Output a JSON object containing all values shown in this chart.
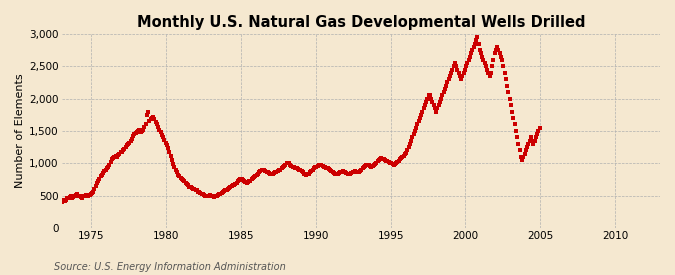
{
  "title": "Monthly U.S. Natural Gas Developmental Wells Drilled",
  "ylabel": "Number of Elements",
  "source_text": "Source: U.S. Energy Information Administration",
  "background_color": "#f5e8d0",
  "plot_bg_color": "#f5e8d0",
  "marker_color": "#cc0000",
  "ylim": [
    0,
    3000
  ],
  "yticks": [
    0,
    500,
    1000,
    1500,
    2000,
    2500,
    3000
  ],
  "ytick_labels": [
    "0",
    "500",
    "1,000",
    "1,500",
    "2,000",
    "2,500",
    "3,000"
  ],
  "xtick_years": [
    1975,
    1980,
    1985,
    1990,
    1995,
    2000,
    2005,
    2010
  ],
  "title_fontsize": 10.5,
  "label_fontsize": 8,
  "tick_fontsize": 7.5,
  "source_fontsize": 7,
  "xlim_start": [
    1973,
    1,
    1
  ],
  "xlim_end": [
    2013,
    1,
    1
  ],
  "start_year": 1973,
  "start_month": 1,
  "values": [
    400,
    430,
    420,
    430,
    460,
    470,
    480,
    490,
    470,
    480,
    500,
    510,
    520,
    500,
    490,
    480,
    470,
    490,
    500,
    510,
    490,
    500,
    510,
    520,
    540,
    560,
    600,
    650,
    700,
    730,
    760,
    800,
    820,
    850,
    880,
    900,
    920,
    950,
    980,
    1020,
    1060,
    1080,
    1100,
    1120,
    1100,
    1130,
    1150,
    1170,
    1180,
    1200,
    1220,
    1250,
    1280,
    1300,
    1320,
    1350,
    1380,
    1420,
    1450,
    1470,
    1490,
    1500,
    1520,
    1480,
    1500,
    1520,
    1560,
    1600,
    1750,
    1800,
    1650,
    1680,
    1700,
    1720,
    1680,
    1640,
    1600,
    1560,
    1520,
    1480,
    1440,
    1400,
    1360,
    1320,
    1280,
    1240,
    1180,
    1120,
    1050,
    990,
    940,
    900,
    860,
    820,
    800,
    780,
    760,
    740,
    720,
    700,
    680,
    660,
    640,
    630,
    620,
    610,
    600,
    590,
    580,
    560,
    550,
    540,
    530,
    520,
    510,
    500,
    490,
    490,
    500,
    510,
    500,
    490,
    480,
    490,
    500,
    510,
    520,
    530,
    540,
    560,
    570,
    580,
    590,
    600,
    620,
    640,
    650,
    660,
    670,
    680,
    700,
    720,
    740,
    760,
    750,
    740,
    720,
    710,
    700,
    710,
    720,
    730,
    750,
    770,
    790,
    810,
    820,
    840,
    860,
    880,
    890,
    900,
    890,
    880,
    870,
    860,
    850,
    840,
    830,
    840,
    850,
    860,
    870,
    880,
    890,
    900,
    920,
    940,
    960,
    980,
    1000,
    1010,
    1000,
    980,
    960,
    950,
    940,
    930,
    920,
    910,
    900,
    890,
    880,
    860,
    840,
    830,
    820,
    830,
    840,
    860,
    880,
    900,
    920,
    940,
    950,
    960,
    970,
    980,
    970,
    960,
    950,
    940,
    930,
    920,
    910,
    900,
    880,
    860,
    850,
    840,
    830,
    840,
    850,
    860,
    870,
    880,
    870,
    860,
    850,
    840,
    830,
    840,
    850,
    860,
    870,
    880,
    870,
    860,
    870,
    880,
    900,
    920,
    940,
    960,
    970,
    980,
    970,
    960,
    950,
    960,
    970,
    990,
    1010,
    1030,
    1050,
    1070,
    1080,
    1070,
    1060,
    1050,
    1040,
    1030,
    1020,
    1010,
    1000,
    990,
    980,
    990,
    1000,
    1020,
    1040,
    1060,
    1080,
    1100,
    1120,
    1140,
    1160,
    1200,
    1250,
    1300,
    1350,
    1400,
    1450,
    1500,
    1550,
    1600,
    1650,
    1700,
    1750,
    1800,
    1850,
    1900,
    1950,
    2000,
    2050,
    2050,
    2000,
    1950,
    1900,
    1850,
    1800,
    1850,
    1900,
    1950,
    2000,
    2050,
    2100,
    2150,
    2200,
    2250,
    2300,
    2350,
    2400,
    2450,
    2500,
    2550,
    2500,
    2450,
    2400,
    2350,
    2300,
    2350,
    2400,
    2450,
    2500,
    2550,
    2600,
    2650,
    2700,
    2750,
    2800,
    2850,
    2900,
    2950,
    2850,
    2750,
    2700,
    2650,
    2600,
    2550,
    2500,
    2450,
    2400,
    2350,
    2400,
    2500,
    2600,
    2700,
    2750,
    2800,
    2750,
    2700,
    2650,
    2600,
    2500,
    2400,
    2300,
    2200,
    2100,
    2000,
    1900,
    1800,
    1700,
    1600,
    1500,
    1400,
    1300,
    1200,
    1100,
    1050,
    1100,
    1150,
    1200,
    1250,
    1300,
    1350,
    1400,
    1350,
    1300,
    1350,
    1400,
    1450,
    1500,
    1550
  ]
}
